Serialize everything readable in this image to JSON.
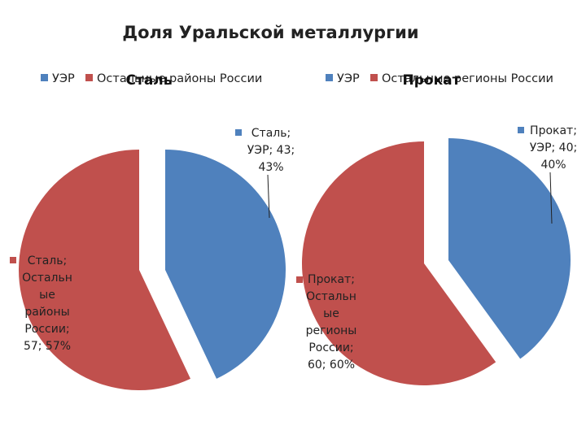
{
  "main_title": "Доля Уральской металлургии",
  "chart_data": [
    {
      "type": "pie",
      "title": "Сталь",
      "categories": [
        "УЭР",
        "Остальные районы России"
      ],
      "values": [
        43,
        57
      ],
      "percent": [
        43,
        57
      ],
      "colors": [
        "#4F81BD",
        "#C0504D"
      ],
      "legend": "top",
      "data_labels": [
        [
          "Сталь;",
          "УЭР; 43;",
          "43%"
        ],
        [
          "Сталь;",
          "Остальн",
          "ые",
          "районы",
          "России;",
          "57; 57%"
        ]
      ]
    },
    {
      "type": "pie",
      "title": "Прокат",
      "categories": [
        "УЭР",
        "Остальные регионы России"
      ],
      "values": [
        40,
        60
      ],
      "percent": [
        40,
        60
      ],
      "colors": [
        "#4F81BD",
        "#C0504D"
      ],
      "legend": "top",
      "data_labels": [
        [
          "Прокат;",
          "УЭР; 40;",
          "40%"
        ],
        [
          "Прокат;",
          "Остальн",
          "ые",
          "регионы",
          "России;",
          "60; 60%"
        ]
      ]
    }
  ]
}
